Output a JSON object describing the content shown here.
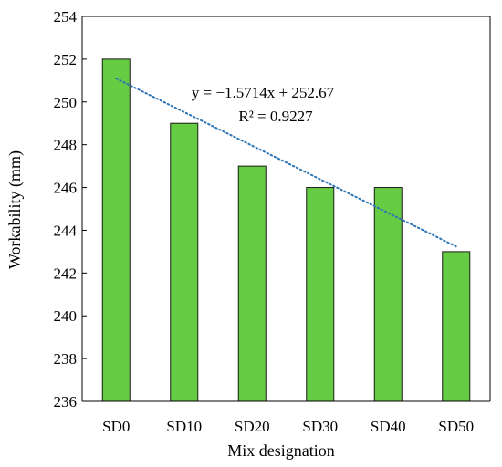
{
  "chart_data": {
    "type": "bar",
    "categories": [
      "SD0",
      "SD10",
      "SD20",
      "SD30",
      "SD40",
      "SD50"
    ],
    "values": [
      252,
      249,
      247,
      246,
      246,
      243
    ],
    "title": "",
    "xlabel": "Mix designation",
    "ylabel": "Workability (mm)",
    "ylim": [
      236,
      254
    ],
    "yticks": [
      236,
      238,
      240,
      242,
      244,
      246,
      248,
      250,
      252,
      254
    ],
    "grid": false,
    "trendline": {
      "type": "linear",
      "slope": -1.5714,
      "intercept": 252.67,
      "equation": "y = −1.5714x + 252.67",
      "r_squared": "R² = 0.9227",
      "style": "dotted"
    },
    "colors": {
      "bar_fill": "#66cc44",
      "bar_stroke": "#1a1a1a",
      "trendline": "#2e75b6",
      "axis": "#000000"
    }
  }
}
